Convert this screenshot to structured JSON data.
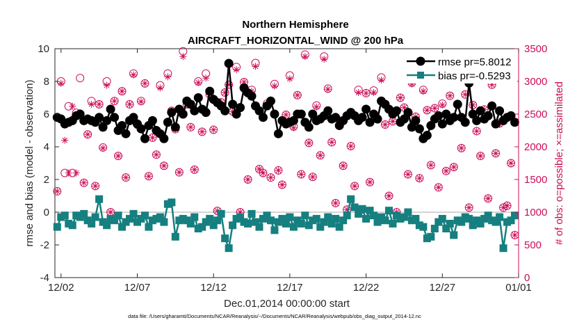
{
  "title": "Northern Hemisphere",
  "subtitle": "AIRCRAFT_HORIZONTAL_WIND @ 200 hPa",
  "footnote": "data file: /Users/gharamti/Documents/NCAR/Reanalysis/~/Documents/NCAR/Reanalysis/webpub/obs_diag_output_2014-12.nc",
  "colors": {
    "rmse": "#000000",
    "bias": "#167f7f",
    "obs": "#cc0d57",
    "zero_line": "#bbbbbb"
  },
  "chart_data": {
    "type": "line",
    "x_start": "2014-12-01T00:00",
    "xlabel": "Dec.01,2014 00:00:00 start",
    "ylabel": "rmse and bias (model - observation)",
    "y2label": "# of obs: o=possible; ×=assimilated",
    "xtick_labels": [
      "12/02",
      "12/07",
      "12/12",
      "12/17",
      "12/22",
      "12/27",
      "01/01"
    ],
    "xtick_values": [
      1,
      6,
      11,
      16,
      21,
      26,
      31
    ],
    "xlim": [
      0.6,
      31
    ],
    "ylim": [
      -4,
      10
    ],
    "y2lim": [
      0,
      3500
    ],
    "yticks": [
      -4,
      -2,
      0,
      2,
      4,
      6,
      8,
      10
    ],
    "y2ticks": [
      0,
      500,
      1000,
      1500,
      2000,
      2500,
      3000,
      3500
    ],
    "grid": false,
    "legend_position": "top-right",
    "x": [
      0.75,
      1.0,
      1.25,
      1.5,
      1.75,
      2.0,
      2.25,
      2.5,
      2.75,
      3.0,
      3.25,
      3.5,
      3.75,
      4.0,
      4.25,
      4.5,
      4.75,
      5.0,
      5.25,
      5.5,
      5.75,
      6.0,
      6.25,
      6.5,
      6.75,
      7.0,
      7.25,
      7.5,
      7.75,
      8.0,
      8.25,
      8.5,
      8.75,
      9.0,
      9.25,
      9.5,
      9.75,
      10.0,
      10.25,
      10.5,
      10.75,
      11.0,
      11.25,
      11.5,
      11.75,
      12.0,
      12.25,
      12.5,
      12.75,
      13.0,
      13.25,
      13.5,
      13.75,
      14.0,
      14.25,
      14.5,
      14.75,
      15.0,
      15.25,
      15.5,
      15.75,
      16.0,
      16.25,
      16.5,
      16.75,
      17.0,
      17.25,
      17.5,
      17.75,
      18.0,
      18.25,
      18.5,
      18.75,
      19.0,
      19.25,
      19.5,
      19.75,
      20.0,
      20.25,
      20.5,
      20.75,
      21.0,
      21.25,
      21.5,
      21.75,
      22.0,
      22.25,
      22.5,
      22.75,
      23.0,
      23.25,
      23.5,
      23.75,
      24.0,
      24.25,
      24.5,
      24.75,
      25.0,
      25.25,
      25.5,
      25.75,
      26.0,
      26.25,
      26.5,
      26.75,
      27.0,
      27.25,
      27.5,
      27.75,
      28.0,
      28.25,
      28.5,
      28.75,
      29.0,
      29.25,
      29.5,
      29.75,
      30.0,
      30.25,
      30.5,
      30.75
    ],
    "series": [
      {
        "name": "rmse pr=5.8012",
        "values": [
          5.8,
          5.7,
          5.4,
          5.5,
          5.6,
          5.9,
          6.0,
          5.6,
          5.7,
          5.6,
          5.5,
          5.8,
          5.2,
          5.6,
          6.3,
          5.8,
          5.0,
          5.3,
          4.8,
          5.6,
          5.8,
          5.4,
          5.1,
          4.5,
          5.3,
          5.6,
          5.0,
          4.8,
          4.5,
          5.5,
          6.1,
          5.2,
          6.3,
          6.0,
          6.8,
          6.6,
          6.2,
          7.0,
          6.3,
          6.1,
          7.4,
          6.9,
          6.7,
          6.5,
          6.2,
          9.1,
          6.6,
          6.0,
          6.4,
          7.6,
          7.3,
          7.1,
          6.5,
          6.2,
          5.8,
          6.5,
          6.8,
          6.0,
          4.8,
          5.6,
          5.4,
          5.5,
          5.6,
          6.0,
          6.0,
          5.5,
          5.2,
          6.0,
          5.6,
          5.7,
          5.9,
          6.2,
          5.7,
          5.8,
          5.3,
          5.6,
          5.9,
          6.1,
          5.9,
          5.6,
          5.8,
          6.3,
          5.5,
          6.0,
          5.7,
          6.8,
          6.6,
          6.3,
          6.0,
          6.2,
          5.5,
          5.7,
          6.1,
          5.2,
          5.6,
          5.1,
          4.5,
          4.7,
          5.3,
          5.7,
          5.9,
          5.4,
          6.0,
          5.6,
          5.8,
          6.6,
          5.8,
          5.5,
          7.9,
          6.0,
          5.6,
          6.2,
          5.7,
          5.9,
          6.5,
          5.4,
          6.2,
          5.6,
          5.8,
          5.9,
          5.5
        ],
        "color": "#000000"
      },
      {
        "name": "bias pr=-0.5293",
        "values": [
          -0.9,
          -0.3,
          -0.2,
          -0.7,
          -0.8,
          -0.2,
          -0.3,
          -0.1,
          -0.5,
          -0.7,
          -0.3,
          0.8,
          -0.6,
          -0.8,
          -0.4,
          -0.5,
          -0.2,
          -0.9,
          -0.6,
          -0.4,
          -0.1,
          -0.6,
          -0.4,
          -0.2,
          -0.9,
          -0.5,
          -0.4,
          -0.3,
          -0.6,
          0.5,
          0.6,
          -1.5,
          -0.5,
          -0.4,
          -0.5,
          -0.7,
          -0.3,
          -1.0,
          -0.9,
          -0.6,
          -0.4,
          -0.8,
          -0.5,
          -0.1,
          -1.6,
          -2.2,
          -0.8,
          -0.4,
          -0.3,
          -0.6,
          -0.7,
          -0.1,
          -0.6,
          -0.9,
          -0.4,
          -0.2,
          -0.5,
          -1.1,
          -0.6,
          -0.4,
          -0.7,
          -0.3,
          -0.9,
          -0.5,
          -0.7,
          -0.2,
          -0.8,
          -0.5,
          -0.4,
          -0.9,
          -0.6,
          -0.3,
          -0.7,
          -0.4,
          -0.9,
          -0.5,
          -0.2,
          0.8,
          0.3,
          -0.1,
          0.2,
          -0.4,
          0.1,
          -0.2,
          -0.6,
          -0.3,
          -0.5,
          0.1,
          -0.7,
          -0.2,
          -0.4,
          -0.3,
          0.0,
          -0.5,
          -0.4,
          -0.8,
          -0.9,
          -1.6,
          -1.5,
          -1.0,
          -0.6,
          -0.4,
          -1.0,
          -0.7,
          -1.4,
          -0.5,
          -0.6,
          -0.3,
          -0.4,
          -0.8,
          -0.5,
          -0.7,
          -0.4,
          -0.2,
          -0.5,
          -0.6,
          -0.3,
          -2.2,
          -0.6,
          -0.5,
          -0.2
        ],
        "color": "#167f7f"
      }
    ],
    "obs_possible": [
      1320,
      3000,
      1600,
      2620,
      1600,
      2520,
      3050,
      1450,
      2190,
      2700,
      1400,
      2650,
      1990,
      3000,
      1000,
      2700,
      1860,
      2850,
      1530,
      2650,
      3120,
      2340,
      2700,
      2970,
      1550,
      2140,
      1880,
      2940,
      1710,
      3120,
      2550,
      2270,
      1610,
      3460,
      2650,
      2300,
      1650,
      3000,
      2230,
      3120,
      2800,
      2260,
      1020,
      2680,
      2830,
      2950,
      2540,
      3220,
      1000,
      2990,
      1500,
      2870,
      3280,
      1660,
      1600,
      2660,
      1530,
      2960,
      1640,
      1420,
      2490,
      3090,
      2310,
      2790,
      1580,
      3410,
      2060,
      1540,
      2630,
      1870,
      3380,
      2890,
      2070,
      1140,
      2400,
      1710,
      1040,
      2010,
      1400,
      2870,
      1040,
      2820,
      1460,
      2860,
      2420,
      3060,
      2340,
      1250,
      2390,
      1000,
      2750,
      2600,
      1580,
      2980,
      2460,
      1520,
      2870,
      2560,
      1720,
      2590,
      1380,
      2660,
      1630,
      2780,
      1690,
      3100,
      1980,
      2800,
      1070,
      2640,
      2240,
      1860,
      2570,
      1210,
      2950,
      1900,
      2360,
      1070,
      1100,
      1750,
      650,
      30
    ],
    "obs_assimilated": [
      1320,
      2970,
      2100,
      1600,
      2620,
      1600,
      2520,
      1450,
      2190,
      2650,
      1400,
      2650,
      1980,
      2940,
      1000,
      2700,
      1860,
      2850,
      1530,
      2650,
      3100,
      2320,
      2690,
      2970,
      1550,
      2140,
      1880,
      2900,
      1710,
      3070,
      2550,
      2270,
      1610,
      3380,
      2650,
      2300,
      1650,
      2980,
      2230,
      3050,
      2800,
      2260,
      1020,
      2680,
      2830,
      2950,
      2540,
      3180,
      1000,
      2990,
      1500,
      2850,
      3230,
      1660,
      1600,
      2640,
      1530,
      2930,
      1640,
      1420,
      2490,
      3040,
      2290,
      2790,
      1580,
      3380,
      2060,
      1540,
      2610,
      1870,
      3340,
      2880,
      2070,
      1140,
      2400,
      1710,
      1040,
      2010,
      1400,
      2830,
      1040,
      2820,
      1460,
      2830,
      2420,
      3020,
      2340,
      1250,
      2390,
      1000,
      2750,
      2600,
      1580,
      2960,
      2460,
      1520,
      2850,
      2560,
      1720,
      2590,
      1380,
      2640,
      1630,
      2780,
      1690,
      3050,
      1980,
      2800,
      1070,
      2640,
      2240,
      1860,
      2570,
      1210,
      2950,
      1900,
      2340,
      1070,
      1100,
      1750,
      650,
      30
    ]
  }
}
